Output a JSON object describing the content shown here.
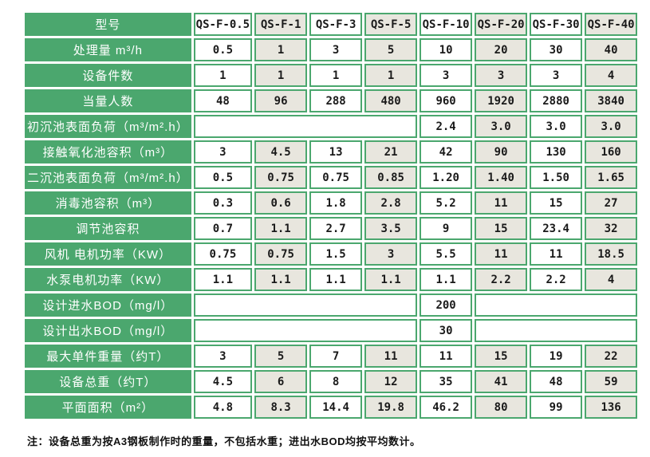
{
  "colors": {
    "green": "#4BA76E",
    "alt_cell": "#E8E6DE",
    "text": "#1A1A1A",
    "label_text": "#FFFFFF"
  },
  "table": {
    "header": {
      "label": "型号",
      "models": [
        "QS-F-0.5",
        "QS-F-1",
        "QS-F-3",
        "QS-F-5",
        "QS-F-10",
        "QS-F-20",
        "QS-F-30",
        "QS-F-40"
      ]
    },
    "rows": [
      {
        "label": "处理量 m³/h",
        "cells": [
          {
            "v": "0.5"
          },
          {
            "v": "1"
          },
          {
            "v": "3"
          },
          {
            "v": "5"
          },
          {
            "v": "10"
          },
          {
            "v": "20"
          },
          {
            "v": "30"
          },
          {
            "v": "40"
          }
        ]
      },
      {
        "label": "设备件数",
        "cells": [
          {
            "v": "1"
          },
          {
            "v": "1"
          },
          {
            "v": "1"
          },
          {
            "v": "1"
          },
          {
            "v": "3"
          },
          {
            "v": "3"
          },
          {
            "v": "3"
          },
          {
            "v": "4"
          }
        ]
      },
      {
        "label": "当量人数",
        "cells": [
          {
            "v": "48"
          },
          {
            "v": "96"
          },
          {
            "v": "288"
          },
          {
            "v": "480"
          },
          {
            "v": "960"
          },
          {
            "v": "1920"
          },
          {
            "v": "2880"
          },
          {
            "v": "3840"
          }
        ]
      },
      {
        "label": "初沉池表面负荷（m³/m².h）",
        "cells": [
          {
            "v": "",
            "span": 4
          },
          {
            "v": "2.4"
          },
          {
            "v": "3.0"
          },
          {
            "v": "3.0"
          },
          {
            "v": "3.0"
          }
        ]
      },
      {
        "label": "接触氧化池容积（m³）",
        "cells": [
          {
            "v": "3"
          },
          {
            "v": "4.5"
          },
          {
            "v": "13"
          },
          {
            "v": "21"
          },
          {
            "v": "42"
          },
          {
            "v": "90"
          },
          {
            "v": "130"
          },
          {
            "v": "160"
          }
        ]
      },
      {
        "label": "二沉池表面负荷（m³/m².h）",
        "cells": [
          {
            "v": "0.5"
          },
          {
            "v": "0.75"
          },
          {
            "v": "0.75"
          },
          {
            "v": "0.85"
          },
          {
            "v": "1.20"
          },
          {
            "v": "1.40"
          },
          {
            "v": "1.50"
          },
          {
            "v": "1.65"
          }
        ]
      },
      {
        "label": "消毒池容积（m³）",
        "cells": [
          {
            "v": "0.3"
          },
          {
            "v": "0.6"
          },
          {
            "v": "1.8"
          },
          {
            "v": "2.8"
          },
          {
            "v": "5.2"
          },
          {
            "v": "11"
          },
          {
            "v": "15"
          },
          {
            "v": "27"
          }
        ]
      },
      {
        "label": "调节池容积",
        "cells": [
          {
            "v": "0.7"
          },
          {
            "v": "1.1"
          },
          {
            "v": "2.7"
          },
          {
            "v": "3.5"
          },
          {
            "v": "9"
          },
          {
            "v": "15"
          },
          {
            "v": "23.4"
          },
          {
            "v": "32"
          }
        ]
      },
      {
        "label": "风机 电机功率（KW）",
        "cells": [
          {
            "v": "0.75"
          },
          {
            "v": "0.75"
          },
          {
            "v": "1.5"
          },
          {
            "v": "3"
          },
          {
            "v": "5.5"
          },
          {
            "v": "11"
          },
          {
            "v": "11"
          },
          {
            "v": "18.5"
          }
        ]
      },
      {
        "label": "水泵电机功率（KW）",
        "cells": [
          {
            "v": "1.1"
          },
          {
            "v": "1.1"
          },
          {
            "v": "1.1"
          },
          {
            "v": "1.1"
          },
          {
            "v": "1.1"
          },
          {
            "v": "2.2"
          },
          {
            "v": "2.2"
          },
          {
            "v": "4"
          }
        ]
      },
      {
        "label": "设计进水BOD（mg/l）",
        "cells": [
          {
            "v": "",
            "span": 4
          },
          {
            "v": "200"
          },
          {
            "v": "",
            "span": 3
          }
        ]
      },
      {
        "label": "设计出水BOD（mg/l）",
        "cells": [
          {
            "v": "",
            "span": 4
          },
          {
            "v": "30"
          },
          {
            "v": "",
            "span": 3
          }
        ]
      },
      {
        "label": "最大单件重量（约T）",
        "cells": [
          {
            "v": "3"
          },
          {
            "v": "5"
          },
          {
            "v": "7"
          },
          {
            "v": "11"
          },
          {
            "v": "11"
          },
          {
            "v": "15"
          },
          {
            "v": "19"
          },
          {
            "v": "22"
          }
        ]
      },
      {
        "label": "设备总重（约T）",
        "cells": [
          {
            "v": "4.5"
          },
          {
            "v": "6"
          },
          {
            "v": "8"
          },
          {
            "v": "12"
          },
          {
            "v": "35"
          },
          {
            "v": "41"
          },
          {
            "v": "48"
          },
          {
            "v": "59"
          }
        ]
      },
      {
        "label": "平面面积（m²）",
        "cells": [
          {
            "v": "4.8"
          },
          {
            "v": "8.3"
          },
          {
            "v": "14.4"
          },
          {
            "v": "19.8"
          },
          {
            "v": "46.2"
          },
          {
            "v": "80"
          },
          {
            "v": "99"
          },
          {
            "v": "136"
          }
        ]
      }
    ]
  },
  "note": "注：设备总重为按A3钢板制作时的重量，不包括水重；进出水BOD均按平均数计。"
}
